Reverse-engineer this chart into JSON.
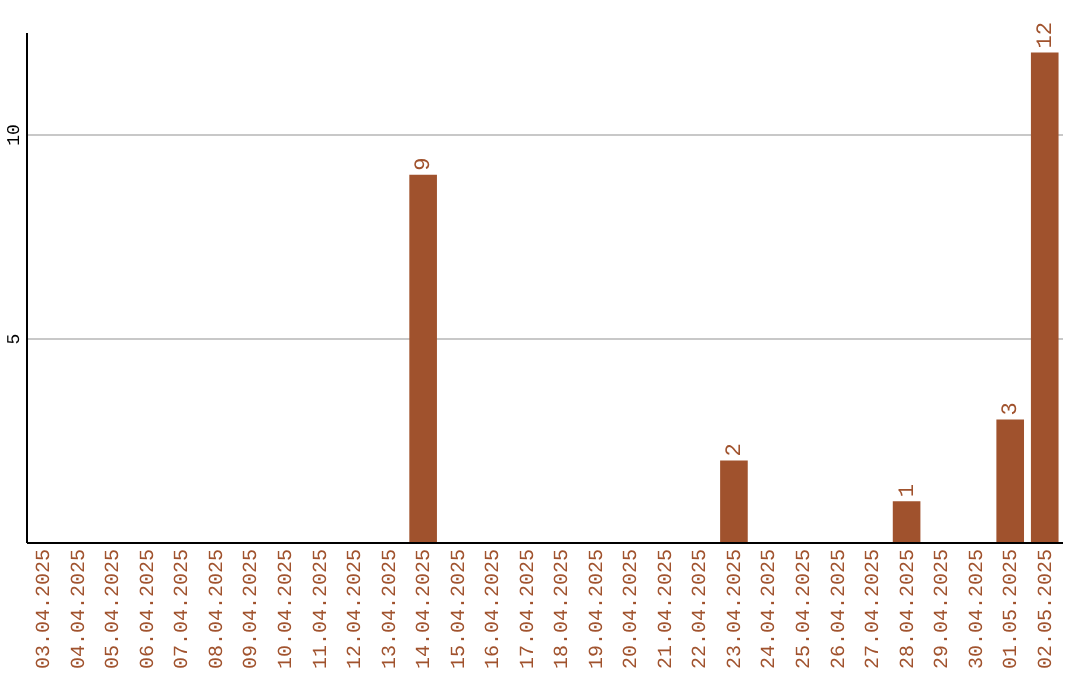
{
  "chart_data": {
    "type": "bar",
    "categories": [
      "03.04.2025",
      "04.04.2025",
      "05.04.2025",
      "06.04.2025",
      "07.04.2025",
      "08.04.2025",
      "09.04.2025",
      "10.04.2025",
      "11.04.2025",
      "12.04.2025",
      "13.04.2025",
      "14.04.2025",
      "15.04.2025",
      "16.04.2025",
      "17.04.2025",
      "18.04.2025",
      "19.04.2025",
      "20.04.2025",
      "21.04.2025",
      "22.04.2025",
      "23.04.2025",
      "24.04.2025",
      "25.04.2025",
      "26.04.2025",
      "27.04.2025",
      "28.04.2025",
      "29.04.2025",
      "30.04.2025",
      "01.05.2025",
      "02.05.2025"
    ],
    "values": [
      0,
      0,
      0,
      0,
      0,
      0,
      0,
      0,
      0,
      0,
      0,
      9,
      0,
      0,
      0,
      0,
      0,
      0,
      0,
      0,
      2,
      0,
      0,
      0,
      0,
      1,
      0,
      0,
      3,
      12
    ],
    "value_labels": [
      null,
      null,
      null,
      null,
      null,
      null,
      null,
      null,
      null,
      null,
      null,
      "9",
      null,
      null,
      null,
      null,
      null,
      null,
      null,
      null,
      "2",
      null,
      null,
      null,
      null,
      "1",
      null,
      null,
      "3",
      "12"
    ],
    "color": "#a0522d",
    "ylim": [
      0,
      12.5
    ],
    "yticks": [
      5,
      10
    ],
    "grid": "y"
  }
}
